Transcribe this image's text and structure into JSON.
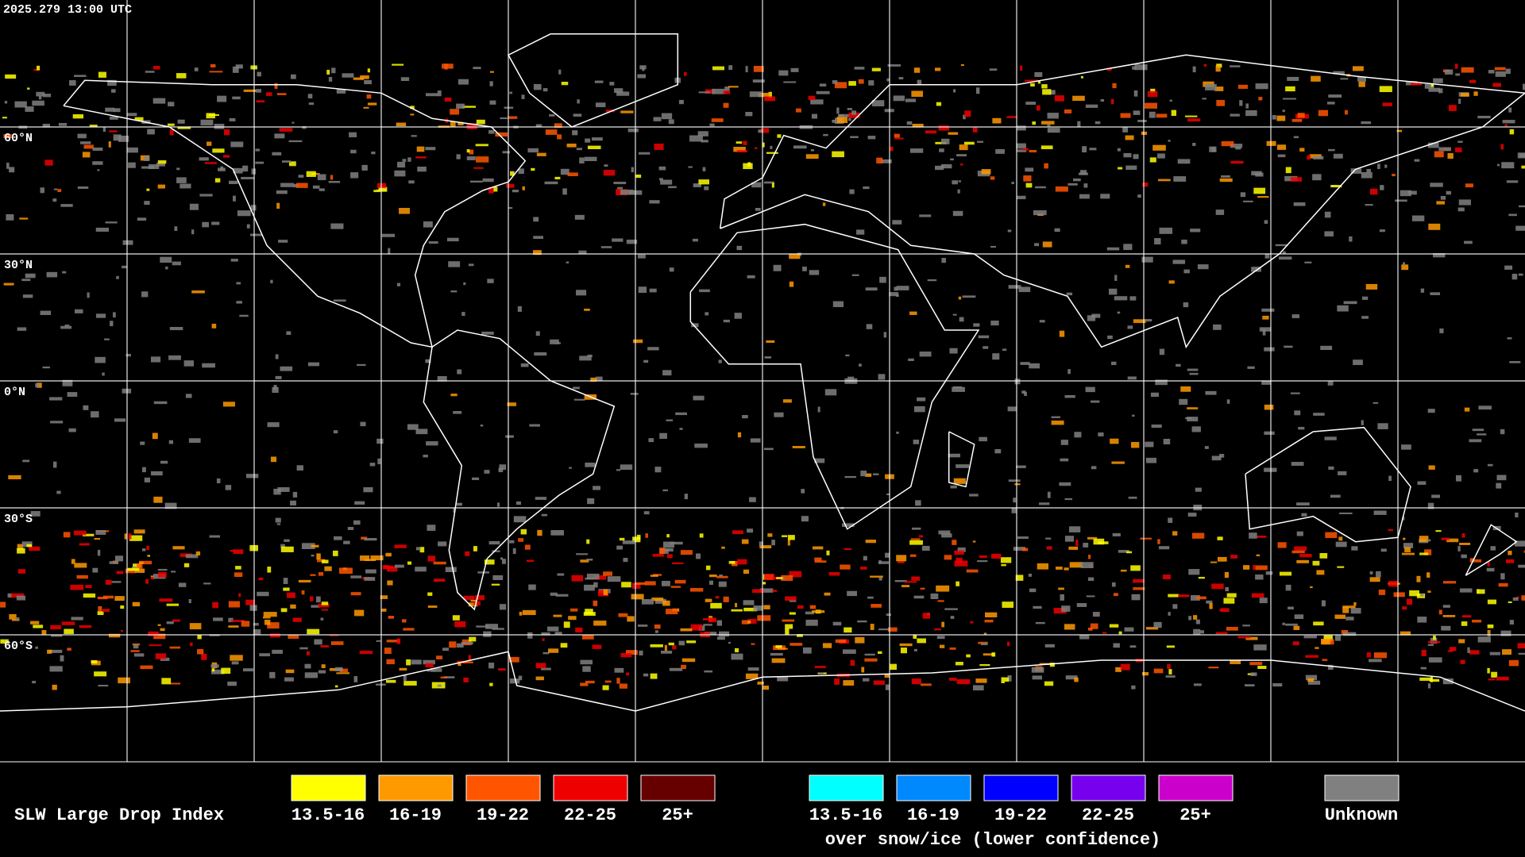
{
  "header": {
    "timestamp": "2025.279 13:00 UTC"
  },
  "map": {
    "latitude_labels": [
      "60°N",
      "30°N",
      "0°N",
      "30°S",
      "60°S"
    ]
  },
  "legend": {
    "title": "SLW Large Drop Index",
    "items": [
      {
        "label": "13.5-16",
        "color": "#ffff00"
      },
      {
        "label": "16-19",
        "color": "#ff9900"
      },
      {
        "label": "19-22",
        "color": "#ff5500"
      },
      {
        "label": "22-25",
        "color": "#ee0000"
      },
      {
        "label": "25+",
        "color": "#660000"
      }
    ],
    "snow_ice_items": [
      {
        "label": "13.5-16",
        "color": "#00ffff"
      },
      {
        "label": "16-19",
        "color": "#0088ff"
      },
      {
        "label": "19-22",
        "color": "#0000ff"
      },
      {
        "label": "22-25",
        "color": "#7700ee"
      },
      {
        "label": "25+",
        "color": "#cc00cc"
      }
    ],
    "snow_ice_caption": "over snow/ice (lower confidence)",
    "unknown": {
      "label": "Unknown",
      "color": "#808080"
    }
  }
}
